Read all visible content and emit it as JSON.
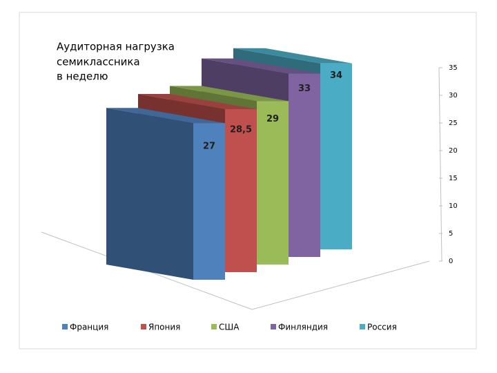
{
  "chart_data": {
    "type": "bar3d",
    "title": [
      "Аудиторная нагрузка",
      "семиклассника",
      "в неделю"
    ],
    "categories": [
      null
    ],
    "series": [
      {
        "name": "Франция",
        "color": "#4f81bd",
        "values": [
          27
        ]
      },
      {
        "name": "Япония",
        "color": "#c0504d",
        "values": [
          28.5
        ],
        "value_labels": [
          "28,5"
        ]
      },
      {
        "name": "США",
        "color": "#9bbb59",
        "values": [
          29
        ]
      },
      {
        "name": "Финляндия",
        "color": "#8064a2",
        "values": [
          33
        ]
      },
      {
        "name": "Россия",
        "color": "#4bacc6",
        "values": [
          34
        ]
      }
    ],
    "ylim": [
      0,
      35
    ],
    "yticks": [
      0,
      5,
      10,
      15,
      20,
      25,
      30,
      35
    ],
    "legend": "bottom",
    "data_labels": true
  }
}
